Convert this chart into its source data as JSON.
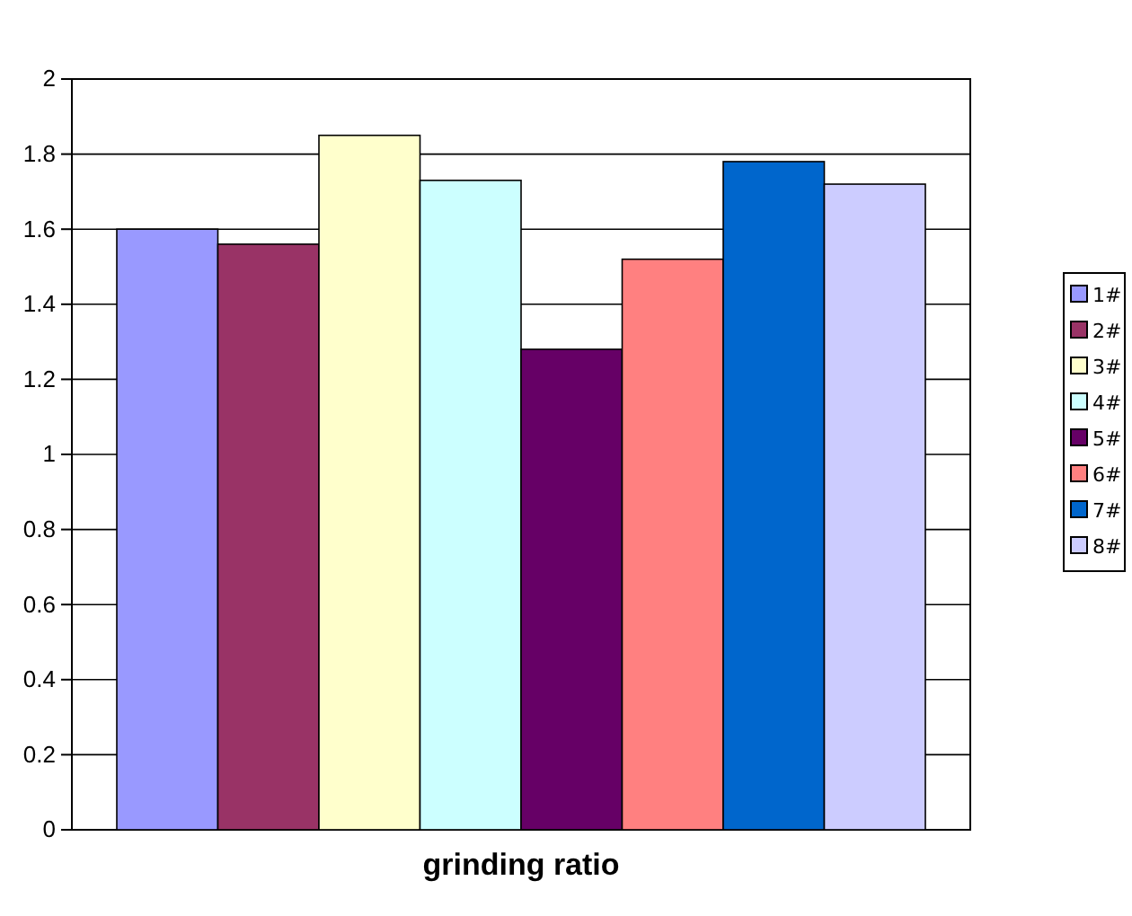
{
  "chart_data": {
    "type": "bar",
    "categories": [
      "grinding ratio"
    ],
    "series": [
      {
        "name": "1#",
        "color": "#9999ff",
        "values": [
          1.6
        ]
      },
      {
        "name": "2#",
        "color": "#993366",
        "values": [
          1.56
        ]
      },
      {
        "name": "3#",
        "color": "#ffffcc",
        "values": [
          1.85
        ]
      },
      {
        "name": "4#",
        "color": "#ccffff",
        "values": [
          1.73
        ]
      },
      {
        "name": "5#",
        "color": "#660066",
        "values": [
          1.28
        ]
      },
      {
        "name": "6#",
        "color": "#ff8080",
        "values": [
          1.52
        ]
      },
      {
        "name": "7#",
        "color": "#0066cc",
        "values": [
          1.78
        ]
      },
      {
        "name": "8#",
        "color": "#ccccff",
        "values": [
          1.72
        ]
      }
    ],
    "ylim": [
      0,
      2
    ],
    "yticks": [
      0,
      0.2,
      0.4,
      0.6,
      0.8,
      1,
      1.2,
      1.4,
      1.6,
      1.8,
      2
    ],
    "grid": "y",
    "legend": "right"
  }
}
